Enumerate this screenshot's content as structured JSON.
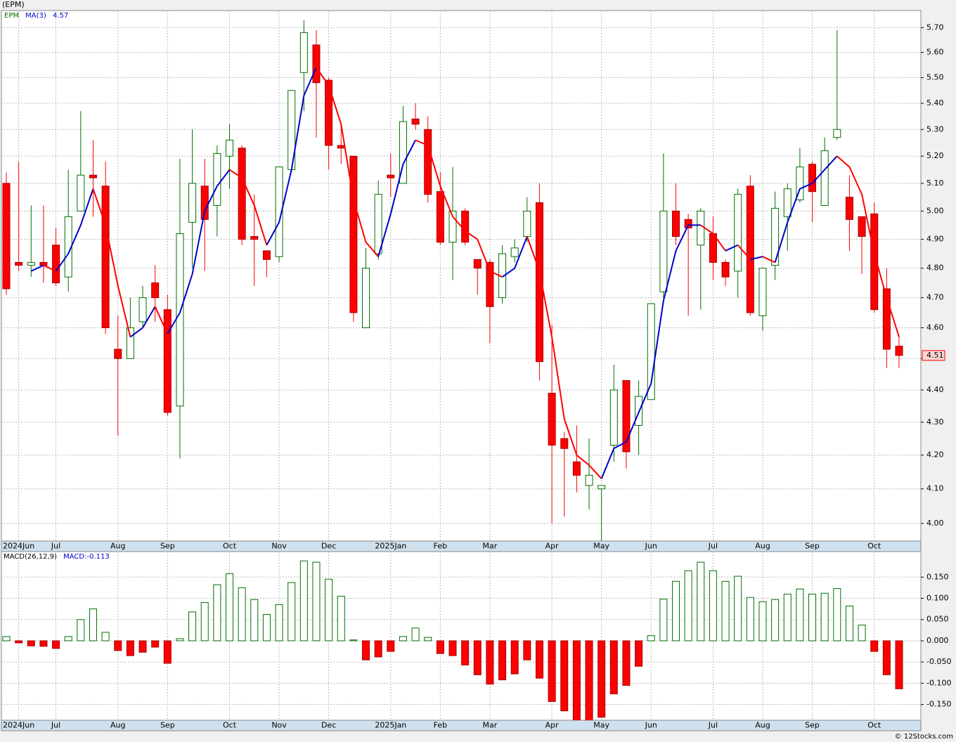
{
  "page_title": "(EPM)",
  "footer": "© 12Stocks.com",
  "chart_data": [
    {
      "type": "candlestick",
      "log_scale": true,
      "grid": true,
      "categories": [
        null,
        "2024Jun",
        null,
        null,
        "Jul",
        null,
        null,
        null,
        null,
        "Aug",
        null,
        null,
        null,
        "Sep",
        null,
        null,
        null,
        null,
        "Oct",
        null,
        null,
        null,
        "Nov",
        null,
        null,
        null,
        "Dec",
        null,
        null,
        null,
        null,
        "2025Jan",
        null,
        null,
        null,
        "Feb",
        null,
        null,
        null,
        "Mar",
        null,
        null,
        null,
        null,
        "Apr",
        null,
        null,
        null,
        "May",
        null,
        null,
        null,
        "Jun",
        null,
        null,
        null,
        null,
        "Jul",
        null,
        null,
        null,
        "Aug",
        null,
        null,
        null,
        "Sep",
        null,
        null,
        null,
        null,
        "Oct",
        null,
        null
      ],
      "series": [
        {
          "name": "EPM",
          "up_color": "#007000",
          "down_color": "#ff0000",
          "open": [
            5.1,
            4.82,
            4.81,
            4.82,
            4.88,
            4.77,
            5.0,
            5.13,
            5.09,
            4.53,
            4.5,
            4.62,
            4.75,
            4.66,
            4.35,
            4.96,
            5.09,
            5.02,
            5.2,
            5.23,
            4.91,
            4.86,
            4.84,
            5.15,
            5.52,
            5.63,
            5.49,
            5.24,
            5.2,
            4.6,
            4.85,
            5.13,
            5.1,
            5.34,
            5.3,
            5.07,
            4.89,
            5.0,
            4.83,
            4.82,
            4.7,
            4.84,
            4.91,
            5.03,
            4.39,
            4.25,
            4.18,
            4.11,
            4.1,
            4.23,
            4.43,
            4.29,
            4.37,
            4.72,
            5.0,
            4.97,
            4.88,
            4.92,
            4.82,
            4.79,
            5.09,
            4.64,
            4.81,
            4.98,
            5.04,
            5.17,
            5.02,
            5.27,
            5.05,
            4.98,
            4.99,
            4.73,
            4.54
          ],
          "high": [
            5.14,
            5.18,
            5.02,
            5.02,
            4.94,
            5.15,
            5.37,
            5.26,
            5.18,
            4.64,
            4.7,
            4.74,
            4.81,
            4.71,
            5.19,
            5.3,
            5.19,
            5.24,
            5.32,
            5.24,
            5.06,
            4.86,
            5.16,
            5.45,
            5.73,
            5.69,
            5.5,
            5.32,
            5.2,
            4.87,
            5.11,
            5.21,
            5.39,
            5.4,
            5.35,
            5.14,
            5.16,
            5.01,
            4.83,
            4.83,
            4.88,
            4.9,
            5.05,
            5.1,
            4.61,
            4.27,
            4.29,
            4.25,
            4.11,
            4.48,
            4.43,
            4.43,
            4.68,
            5.21,
            5.1,
            4.99,
            5.01,
            4.98,
            4.83,
            5.08,
            5.13,
            4.8,
            5.07,
            5.1,
            5.23,
            5.18,
            5.27,
            5.69,
            5.13,
            4.98,
            5.03,
            4.8,
            4.57
          ],
          "low": [
            4.71,
            4.79,
            4.77,
            4.75,
            4.74,
            4.72,
            5.0,
            4.98,
            4.58,
            4.26,
            4.5,
            4.6,
            4.62,
            4.32,
            4.19,
            4.8,
            4.79,
            4.91,
            5.08,
            4.88,
            4.74,
            4.77,
            4.82,
            5.14,
            5.37,
            5.27,
            5.15,
            5.17,
            4.62,
            4.6,
            4.83,
            5.05,
            5.1,
            5.3,
            5.03,
            4.88,
            4.76,
            4.88,
            4.71,
            4.55,
            4.68,
            4.82,
            4.89,
            4.43,
            4.0,
            4.02,
            4.09,
            4.04,
            3.95,
            4.18,
            4.16,
            4.2,
            4.37,
            4.7,
            4.88,
            4.64,
            4.66,
            4.76,
            4.74,
            4.7,
            4.64,
            4.59,
            4.76,
            4.86,
            5.03,
            4.96,
            5.02,
            5.26,
            4.86,
            4.78,
            4.65,
            4.47,
            4.47
          ],
          "close": [
            4.73,
            4.81,
            4.82,
            4.81,
            4.75,
            4.98,
            5.13,
            5.12,
            4.6,
            4.5,
            4.6,
            4.7,
            4.7,
            4.33,
            4.92,
            5.1,
            4.97,
            5.21,
            5.26,
            4.9,
            4.9,
            4.83,
            5.16,
            5.45,
            5.68,
            5.48,
            5.24,
            5.23,
            4.65,
            4.8,
            5.06,
            5.12,
            5.33,
            5.32,
            5.06,
            4.89,
            5.0,
            4.89,
            4.8,
            4.67,
            4.85,
            4.87,
            5.0,
            4.49,
            4.23,
            4.22,
            4.14,
            4.14,
            4.11,
            4.4,
            4.21,
            4.38,
            4.68,
            5.0,
            4.91,
            4.94,
            5.0,
            4.82,
            4.77,
            5.06,
            4.65,
            4.8,
            5.01,
            5.08,
            5.16,
            5.07,
            5.22,
            5.3,
            4.97,
            4.91,
            4.66,
            4.53,
            4.51
          ]
        },
        {
          "name": "MA(3)",
          "up_color": "#0000cc",
          "down_color": "#ff0000",
          "values": [
            null,
            null,
            4.79,
            4.81,
            4.79,
            4.85,
            4.95,
            5.08,
            4.95,
            4.74,
            4.57,
            4.6,
            4.67,
            4.58,
            4.65,
            4.78,
            5.0,
            5.09,
            5.15,
            5.12,
            5.02,
            4.88,
            4.96,
            5.15,
            5.43,
            5.54,
            5.47,
            5.32,
            5.04,
            4.89,
            4.84,
            4.99,
            5.17,
            5.26,
            5.24,
            5.09,
            4.98,
            4.93,
            4.9,
            4.79,
            4.77,
            4.8,
            4.91,
            4.79,
            4.57,
            4.31,
            4.2,
            4.17,
            4.13,
            4.22,
            4.24,
            4.33,
            4.42,
            4.69,
            4.86,
            4.95,
            4.95,
            4.92,
            4.86,
            4.88,
            4.83,
            4.84,
            4.82,
            4.96,
            5.08,
            5.1,
            5.15,
            5.2,
            5.16,
            5.06,
            4.85,
            4.7,
            4.57
          ]
        }
      ],
      "ylim": [
        3.95,
        5.77
      ],
      "yticks": [
        {
          "value": 4,
          "label": "4.00"
        },
        {
          "value": 4.1,
          "label": "4.10"
        },
        {
          "value": 4.2,
          "label": "4.20"
        },
        {
          "value": 4.3,
          "label": "4.30"
        },
        {
          "value": 4.4,
          "label": "4.40"
        },
        {
          "value": 4.5,
          "label": "4.50"
        },
        {
          "value": 4.6,
          "label": "4.60"
        },
        {
          "value": 4.7,
          "label": "4.70"
        },
        {
          "value": 4.8,
          "label": "4.80"
        },
        {
          "value": 4.9,
          "label": "4.90"
        },
        {
          "value": 5,
          "label": "5.00"
        },
        {
          "value": 5.1,
          "label": "5.10"
        },
        {
          "value": 5.2,
          "label": "5.20"
        },
        {
          "value": 5.3,
          "label": "5.30"
        },
        {
          "value": 5.4,
          "label": "5.40"
        },
        {
          "value": 5.5,
          "label": "5.50"
        },
        {
          "value": 5.6,
          "label": "5.60"
        },
        {
          "value": 5.7,
          "label": "5.70"
        }
      ]
    },
    {
      "type": "bar",
      "grid": true,
      "series": [
        {
          "name": "MACD(26,12,9)",
          "value_name": "MACD:",
          "up_color": "#007000",
          "down_color": "#ff0000",
          "values": [
            0.01,
            -0.005,
            -0.012,
            -0.013,
            -0.018,
            0.01,
            0.05,
            0.075,
            0.02,
            -0.023,
            -0.035,
            -0.027,
            -0.015,
            -0.053,
            0.005,
            0.068,
            0.09,
            0.132,
            0.158,
            0.125,
            0.097,
            0.062,
            0.085,
            0.137,
            0.188,
            0.185,
            0.145,
            0.105,
            0.002,
            -0.045,
            -0.038,
            -0.025,
            0.01,
            0.03,
            0.008,
            -0.03,
            -0.035,
            -0.057,
            -0.08,
            -0.102,
            -0.092,
            -0.078,
            -0.045,
            -0.088,
            -0.143,
            -0.165,
            -0.188,
            -0.188,
            -0.18,
            -0.125,
            -0.105,
            -0.06,
            0.012,
            0.098,
            0.14,
            0.165,
            0.185,
            0.165,
            0.14,
            0.152,
            0.102,
            0.092,
            0.097,
            0.11,
            0.122,
            0.11,
            0.112,
            0.123,
            0.082,
            0.037,
            -0.025,
            -0.08,
            -0.113
          ]
        }
      ],
      "ylim": [
        -0.187,
        0.21
      ],
      "yticks": [
        {
          "value": -0.15,
          "label": "-0.150"
        },
        {
          "value": -0.1,
          "label": "-0.100"
        },
        {
          "value": -0.05,
          "label": "-0.050"
        },
        {
          "value": 0,
          "label": "0.000"
        },
        {
          "value": 0.05,
          "label": "0.050"
        },
        {
          "value": 0.1,
          "label": "0.100"
        },
        {
          "value": 0.15,
          "label": "0.150"
        }
      ]
    }
  ]
}
